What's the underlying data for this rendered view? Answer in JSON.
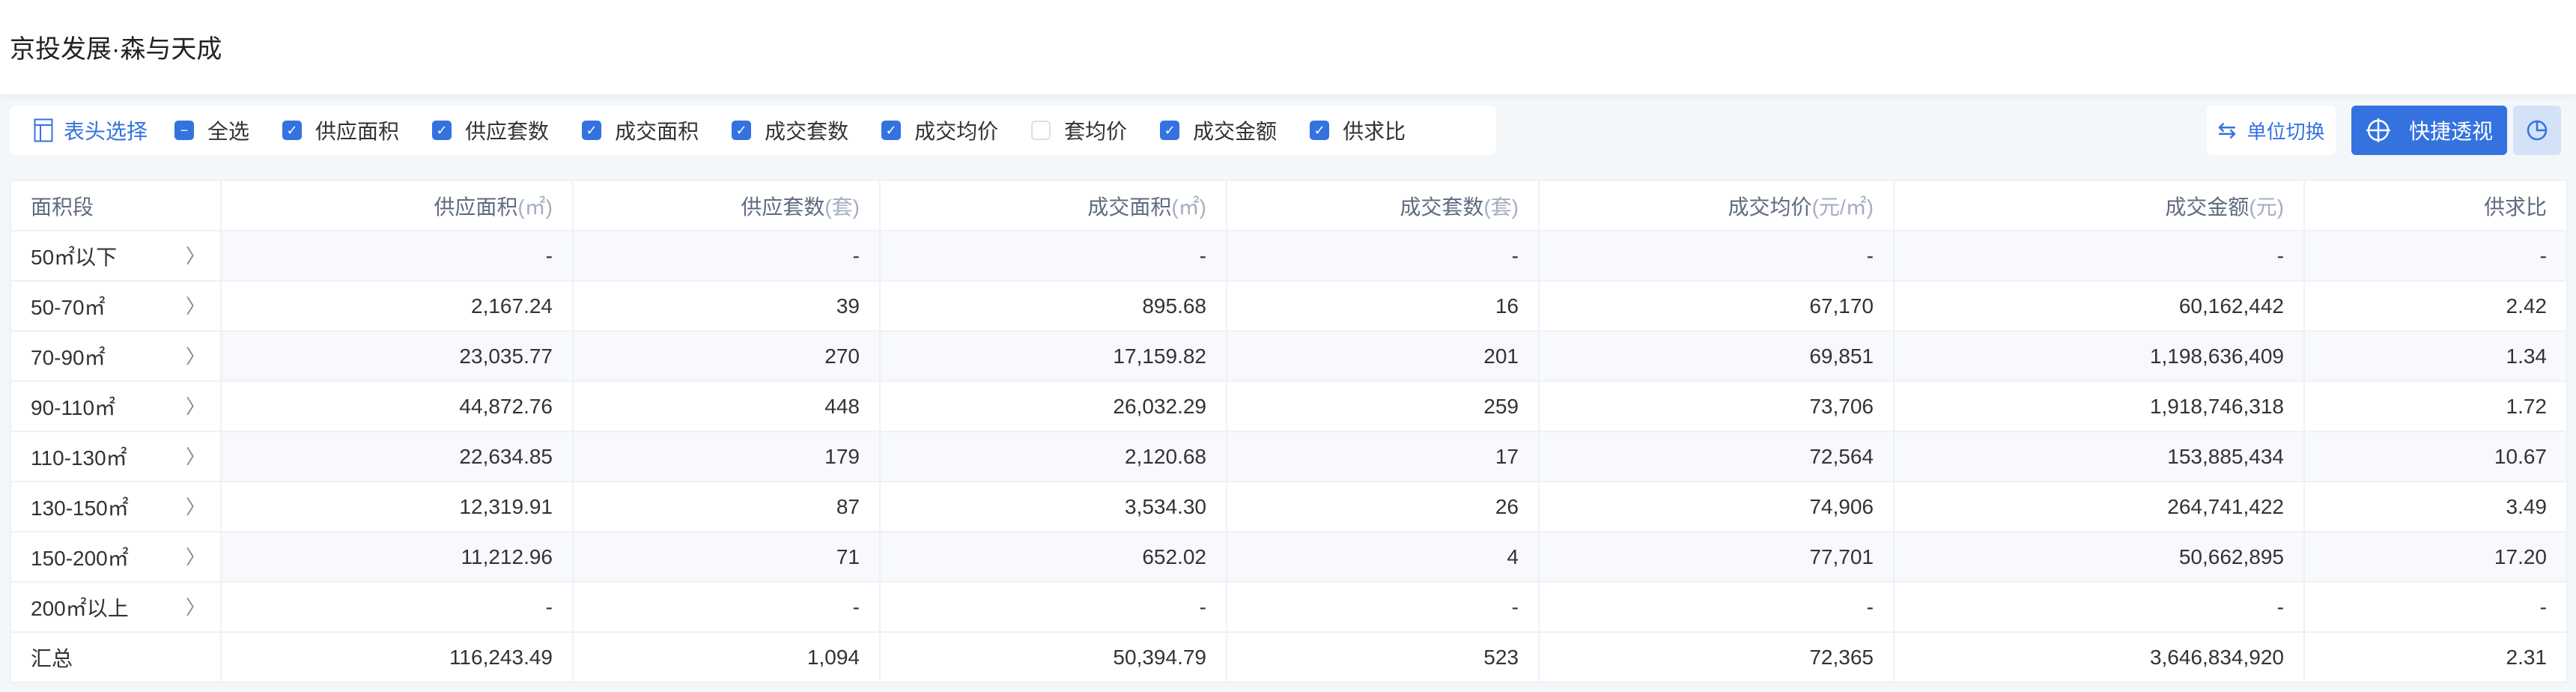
{
  "title": "京投发展·森与天成",
  "toolbar": {
    "header_select": "表头选择",
    "select_all": {
      "label": "全选",
      "state": "indeterminate"
    },
    "columns": [
      {
        "label": "供应面积",
        "checked": true
      },
      {
        "label": "供应套数",
        "checked": true
      },
      {
        "label": "成交面积",
        "checked": true
      },
      {
        "label": "成交套数",
        "checked": true
      },
      {
        "label": "成交均价",
        "checked": true
      },
      {
        "label": "套均价",
        "checked": false
      },
      {
        "label": "成交金额",
        "checked": true
      },
      {
        "label": "供求比",
        "checked": true
      }
    ],
    "unit_switch": "单位切换",
    "quick_pivot": "快捷透视",
    "accent": "#3472e0"
  },
  "table": {
    "headers": [
      {
        "label": "面积段",
        "unit": ""
      },
      {
        "label": "供应面积",
        "unit": "(㎡)"
      },
      {
        "label": "供应套数",
        "unit": "(套)"
      },
      {
        "label": "成交面积",
        "unit": "(㎡)"
      },
      {
        "label": "成交套数",
        "unit": "(套)"
      },
      {
        "label": "成交均价",
        "unit": "(元/㎡)"
      },
      {
        "label": "成交金额",
        "unit": "(元)"
      },
      {
        "label": "供求比",
        "unit": ""
      }
    ],
    "rows": [
      [
        "50㎡以下",
        "-",
        "-",
        "-",
        "-",
        "-",
        "-",
        "-"
      ],
      [
        "50-70㎡",
        "2,167.24",
        "39",
        "895.68",
        "16",
        "67,170",
        "60,162,442",
        "2.42"
      ],
      [
        "70-90㎡",
        "23,035.77",
        "270",
        "17,159.82",
        "201",
        "69,851",
        "1,198,636,409",
        "1.34"
      ],
      [
        "90-110㎡",
        "44,872.76",
        "448",
        "26,032.29",
        "259",
        "73,706",
        "1,918,746,318",
        "1.72"
      ],
      [
        "110-130㎡",
        "22,634.85",
        "179",
        "2,120.68",
        "17",
        "72,564",
        "153,885,434",
        "10.67"
      ],
      [
        "130-150㎡",
        "12,319.91",
        "87",
        "3,534.30",
        "26",
        "74,906",
        "264,741,422",
        "3.49"
      ],
      [
        "150-200㎡",
        "11,212.96",
        "71",
        "652.02",
        "4",
        "77,701",
        "50,662,895",
        "17.20"
      ],
      [
        "200㎡以上",
        "-",
        "-",
        "-",
        "-",
        "-",
        "-",
        "-"
      ]
    ],
    "total": [
      "汇总",
      "116,243.49",
      "1,094",
      "50,394.79",
      "523",
      "72,365",
      "3,646,834,920",
      "2.31"
    ]
  }
}
